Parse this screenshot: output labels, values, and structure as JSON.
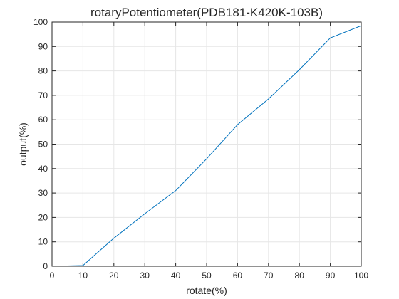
{
  "chart_data": {
    "type": "line",
    "title": "rotaryPotentiometer(PDB181-K420K-103B)",
    "xlabel": "rotate(%)",
    "ylabel": "output(%)",
    "xlim": [
      0,
      100
    ],
    "ylim": [
      0,
      100
    ],
    "xticks": [
      "0",
      "10",
      "20",
      "30",
      "40",
      "50",
      "60",
      "70",
      "80",
      "90",
      "100"
    ],
    "yticks": [
      "0",
      "10",
      "20",
      "30",
      "40",
      "50",
      "60",
      "70",
      "80",
      "90",
      "100"
    ],
    "grid": true,
    "legend": "none",
    "series": [
      {
        "color": "#0072bd",
        "x": [
          0,
          10,
          20,
          30,
          40,
          50,
          60,
          70,
          80,
          90,
          100
        ],
        "y": [
          0,
          0.3,
          11.5,
          21.5,
          31,
          44,
          58,
          68.5,
          80.5,
          93.5,
          98.5
        ]
      }
    ]
  }
}
